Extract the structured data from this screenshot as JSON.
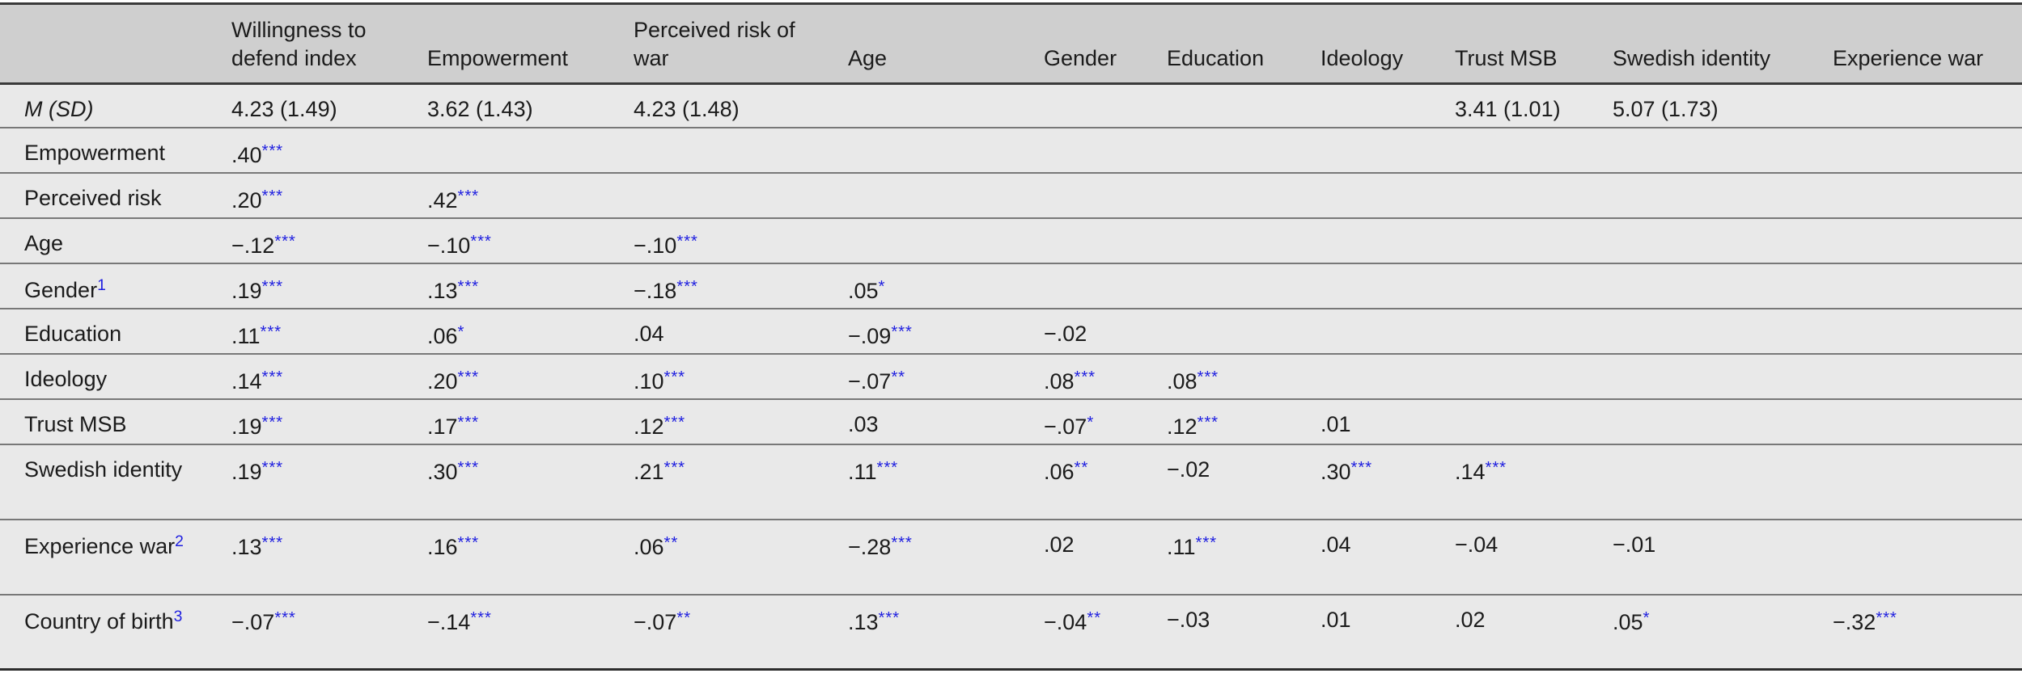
{
  "accent_colors": {
    "significance_blue": "#1e1ee0",
    "header_background": "#cfcfcf",
    "row_background": "#e9e9e9",
    "rule_dark": "#3a3a3a",
    "rule_light": "#787878"
  },
  "chart_data": {
    "type": "table",
    "description": "Correlation matrix with means and standard deviations",
    "columns": [
      "",
      "Willingness to defend index",
      "Empowerment",
      "Perceived risk of war",
      "Age",
      "Gender",
      "Education",
      "Ideology",
      "Trust MSB",
      "Swedish identity",
      "Experience war"
    ]
  },
  "table": {
    "columns": [
      "",
      "Willingness to defend index",
      "Empowerment",
      "Perceived risk of war",
      "Age",
      "Gender",
      "Education",
      "Ideology",
      "Trust MSB",
      "Swedish identity",
      "Experience war"
    ],
    "rows": [
      {
        "label": "M (SD)",
        "italic": true,
        "size": "msd",
        "cells": [
          "4.23 (1.49)",
          "3.62 (1.43)",
          "4.23 (1.48)",
          "",
          "",
          "",
          "",
          "3.41 (1.01)",
          "5.07 (1.73)",
          ""
        ]
      },
      {
        "label": "Empowerment",
        "size": "single",
        "cells": [
          ".40***",
          "",
          "",
          "",
          "",
          "",
          "",
          "",
          "",
          ""
        ]
      },
      {
        "label": "Perceived risk",
        "size": "single",
        "cells": [
          ".20***",
          ".42***",
          "",
          "",
          "",
          "",
          "",
          "",
          "",
          ""
        ]
      },
      {
        "label": "Age",
        "size": "single",
        "cells": [
          "−.12***",
          "−.10***",
          "−.10***",
          "",
          "",
          "",
          "",
          "",
          "",
          ""
        ]
      },
      {
        "label": "Gender",
        "footnote": "1",
        "size": "single",
        "cells": [
          ".19***",
          ".13***",
          "−.18***",
          ".05*",
          "",
          "",
          "",
          "",
          "",
          ""
        ]
      },
      {
        "label": "Education",
        "size": "single",
        "cells": [
          ".11***",
          ".06*",
          ".04",
          "−.09***",
          "−.02",
          "",
          "",
          "",
          "",
          ""
        ]
      },
      {
        "label": "Ideology",
        "size": "single",
        "cells": [
          ".14***",
          ".20***",
          ".10***",
          "−.07**",
          ".08***",
          ".08***",
          "",
          "",
          "",
          ""
        ]
      },
      {
        "label": "Trust MSB",
        "size": "single",
        "cells": [
          ".19***",
          ".17***",
          ".12***",
          ".03",
          "−.07*",
          ".12***",
          ".01",
          "",
          "",
          ""
        ]
      },
      {
        "label": "Swedish identity",
        "size": "tall",
        "cells": [
          ".19***",
          ".30***",
          ".21***",
          ".11***",
          ".06**",
          "−.02",
          ".30***",
          ".14***",
          "",
          ""
        ]
      },
      {
        "label": "Experience war",
        "footnote": "2",
        "size": "tall",
        "cells": [
          ".13***",
          ".16***",
          ".06**",
          "−.28***",
          ".02",
          ".11***",
          ".04",
          "−.04",
          "−.01",
          ""
        ]
      },
      {
        "label": "Country of birth",
        "footnote": "3",
        "size": "tall",
        "cells": [
          "−.07***",
          "−.14***",
          "−.07**",
          ".13***",
          "−.04**",
          "−.03",
          ".01",
          ".02",
          ".05*",
          "−.32***"
        ]
      }
    ]
  }
}
